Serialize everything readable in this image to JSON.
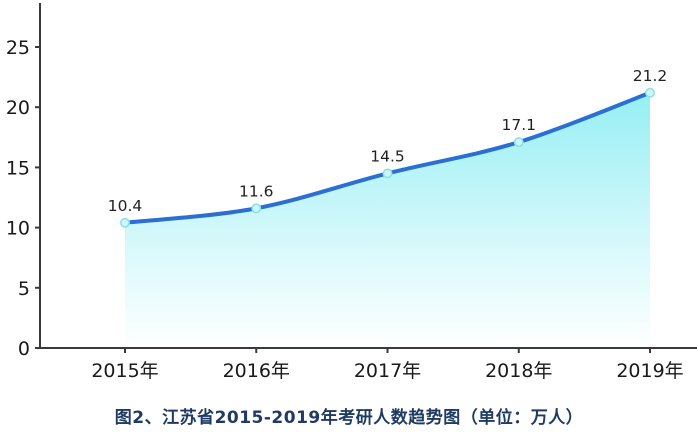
{
  "chart_data": {
    "type": "area",
    "title": "图2、江苏省2015-2019年考研人数趋势图（单位：万人）",
    "categories": [
      "2015年",
      "2016年",
      "2017年",
      "2018年",
      "2019年"
    ],
    "values": [
      10.4,
      11.6,
      14.5,
      17.1,
      21.2
    ],
    "data_labels": [
      "10.4",
      "11.6",
      "14.5",
      "17.1",
      "21.2"
    ],
    "xlabel": "",
    "ylabel": "",
    "ylim": [
      0,
      25
    ],
    "yticks": [
      0,
      5,
      10,
      15,
      20,
      25
    ],
    "grid": false,
    "legend": false,
    "colors": {
      "line": "#2b6fd4",
      "area_top": "#8feef3",
      "area_bottom": "#ffffff",
      "marker_fill": "#cff5f7",
      "marker_stroke": "#86e2e9",
      "axis": "#3a3a3a",
      "tick_label": "#1a1a1a",
      "value_label": "#222222",
      "title": "#1f3b63"
    }
  }
}
